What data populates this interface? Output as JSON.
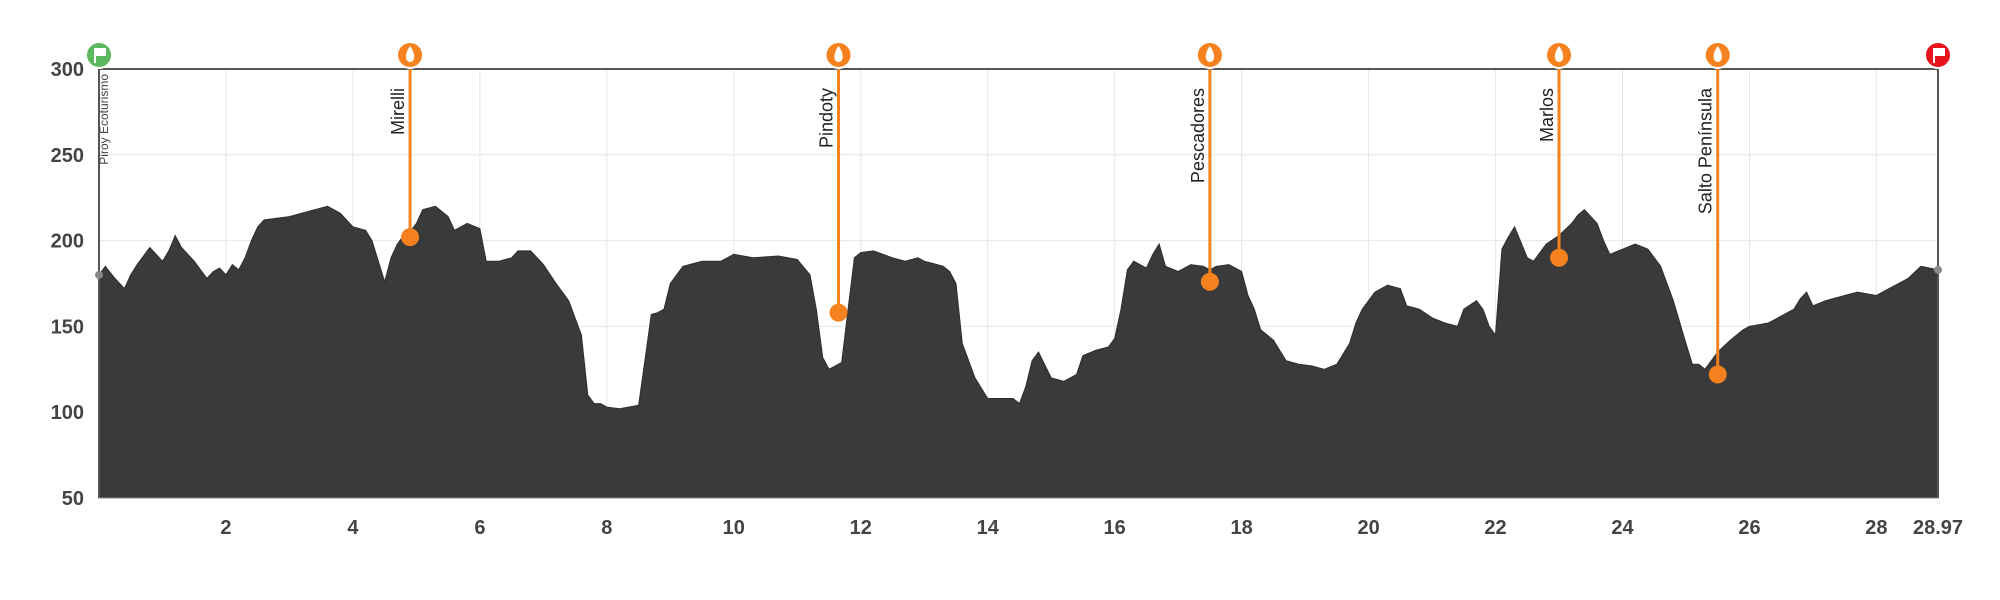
{
  "chart_data": {
    "type": "area",
    "title": "",
    "xlabel": "",
    "ylabel": "",
    "xlim": [
      0,
      28.97
    ],
    "ylim": [
      50,
      300
    ],
    "x_ticks": [
      "2",
      "4",
      "6",
      "8",
      "10",
      "12",
      "14",
      "16",
      "18",
      "20",
      "22",
      "24",
      "26",
      "28",
      "28.97"
    ],
    "y_ticks": [
      "50",
      "100",
      "150",
      "200",
      "250",
      "300"
    ],
    "grid": true,
    "fill_color": "#3a3a3a",
    "marker_color": "#f5821f",
    "start_color": "#5cb85c",
    "end_color": "#e8141d",
    "start_label": "Piroy Ecoturismo",
    "x": [
      0,
      0.1,
      0.25,
      0.4,
      0.5,
      0.6,
      0.8,
      1.0,
      1.1,
      1.2,
      1.3,
      1.5,
      1.7,
      1.8,
      1.9,
      2.0,
      2.1,
      2.2,
      2.3,
      2.4,
      2.5,
      2.6,
      2.8,
      3.0,
      3.2,
      3.4,
      3.6,
      3.8,
      4.0,
      4.2,
      4.3,
      4.4,
      4.5,
      4.6,
      4.7,
      4.8,
      4.9,
      5.0,
      5.1,
      5.3,
      5.5,
      5.6,
      5.8,
      6.0,
      6.1,
      6.3,
      6.5,
      6.6,
      6.8,
      7.0,
      7.2,
      7.4,
      7.6,
      7.7,
      7.8,
      7.9,
      8.0,
      8.2,
      8.5,
      8.6,
      8.7,
      8.8,
      8.9,
      9.0,
      9.2,
      9.5,
      9.8,
      10.0,
      10.3,
      10.7,
      11.0,
      11.2,
      11.3,
      11.4,
      11.5,
      11.7,
      11.8,
      11.9,
      12.0,
      12.2,
      12.5,
      12.7,
      12.9,
      13.0,
      13.1,
      13.3,
      13.4,
      13.5,
      13.6,
      13.8,
      14.0,
      14.2,
      14.4,
      14.5,
      14.6,
      14.7,
      14.8,
      15.0,
      15.2,
      15.4,
      15.5,
      15.7,
      15.9,
      16.0,
      16.1,
      16.2,
      16.3,
      16.5,
      16.6,
      16.7,
      16.8,
      17.0,
      17.2,
      17.4,
      17.5,
      17.6,
      17.8,
      18.0,
      18.1,
      18.2,
      18.3,
      18.5,
      18.7,
      18.9,
      19.1,
      19.3,
      19.5,
      19.7,
      19.8,
      19.9,
      20.1,
      20.3,
      20.5,
      20.6,
      20.8,
      21.0,
      21.2,
      21.4,
      21.5,
      21.7,
      21.8,
      21.9,
      22.0,
      22.1,
      22.2,
      22.3,
      22.5,
      22.6,
      22.8,
      23.0,
      23.2,
      23.3,
      23.4,
      23.6,
      23.7,
      23.8,
      24.0,
      24.2,
      24.4,
      24.6,
      24.8,
      25.0,
      25.1,
      25.2,
      25.3,
      25.5,
      25.7,
      25.9,
      26.0,
      26.3,
      26.5,
      26.7,
      26.8,
      26.9,
      27.0,
      27.2,
      27.5,
      27.7,
      28.0,
      28.2,
      28.5,
      28.7,
      28.97
    ],
    "y": [
      180,
      185,
      178,
      172,
      180,
      186,
      196,
      188,
      194,
      203,
      196,
      188,
      178,
      182,
      184,
      180,
      186,
      183,
      190,
      200,
      208,
      212,
      213,
      214,
      216,
      218,
      220,
      216,
      208,
      206,
      200,
      188,
      176,
      190,
      198,
      203,
      205,
      210,
      218,
      220,
      214,
      206,
      210,
      207,
      188,
      188,
      190,
      194,
      194,
      186,
      175,
      165,
      145,
      110,
      105,
      105,
      103,
      102,
      104,
      130,
      157,
      158,
      160,
      175,
      185,
      188,
      188,
      192,
      190,
      191,
      189,
      180,
      160,
      132,
      125,
      129,
      160,
      190,
      193,
      194,
      190,
      188,
      190,
      188,
      187,
      185,
      182,
      175,
      140,
      120,
      108,
      108,
      108,
      105,
      115,
      130,
      135,
      120,
      118,
      122,
      133,
      136,
      138,
      143,
      160,
      183,
      188,
      184,
      192,
      198,
      185,
      182,
      186,
      185,
      183,
      185,
      186,
      182,
      168,
      160,
      148,
      142,
      130,
      128,
      127,
      125,
      128,
      140,
      152,
      160,
      170,
      174,
      172,
      162,
      160,
      155,
      152,
      150,
      160,
      165,
      160,
      150,
      145,
      195,
      202,
      208,
      190,
      188,
      198,
      203,
      210,
      215,
      218,
      210,
      200,
      192,
      195,
      198,
      195,
      185,
      165,
      140,
      128,
      128,
      125,
      135,
      142,
      148,
      150,
      152,
      156,
      160,
      166,
      170,
      162,
      165,
      168,
      170,
      168,
      172,
      178,
      185,
      183
    ],
    "waypoints": [
      {
        "name": "Mirelli",
        "x": 4.9,
        "y": 202,
        "icon": "water-drop-icon"
      },
      {
        "name": "Pindoty",
        "x": 11.65,
        "y": 158,
        "icon": "water-drop-icon"
      },
      {
        "name": "Pescadores",
        "x": 17.5,
        "y": 176,
        "icon": "water-drop-icon"
      },
      {
        "name": "Marlos",
        "x": 23.0,
        "y": 190,
        "icon": "water-drop-icon"
      },
      {
        "name": "Salto Península",
        "x": 25.5,
        "y": 122,
        "icon": "water-drop-icon"
      }
    ],
    "start": {
      "icon": "start-flag-icon"
    },
    "end": {
      "icon": "finish-flag-icon"
    }
  }
}
